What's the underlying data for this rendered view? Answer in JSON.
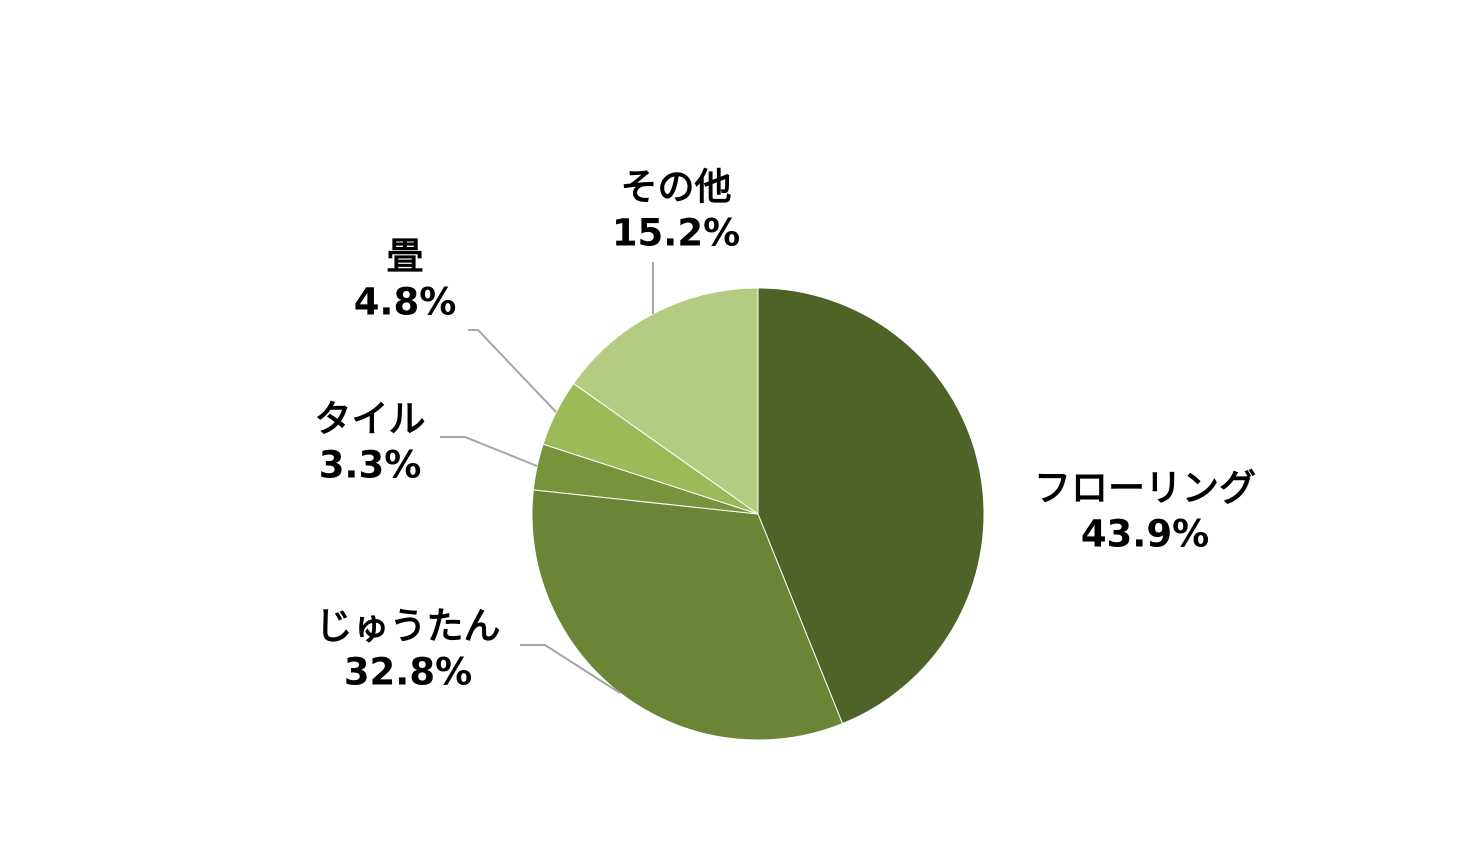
{
  "chart_data": {
    "type": "pie",
    "categories": [
      "フローリング",
      "じゅうたん",
      "タイル",
      "畳",
      "その他"
    ],
    "values": [
      43.9,
      32.8,
      3.3,
      4.8,
      15.2
    ],
    "value_labels": [
      "43.9%",
      "32.8%",
      "3.3%",
      "4.8%",
      "15.2%"
    ],
    "colors": [
      "#4f6228",
      "#6a8535",
      "#77933c",
      "#9bbb59",
      "#b3cc82"
    ]
  }
}
